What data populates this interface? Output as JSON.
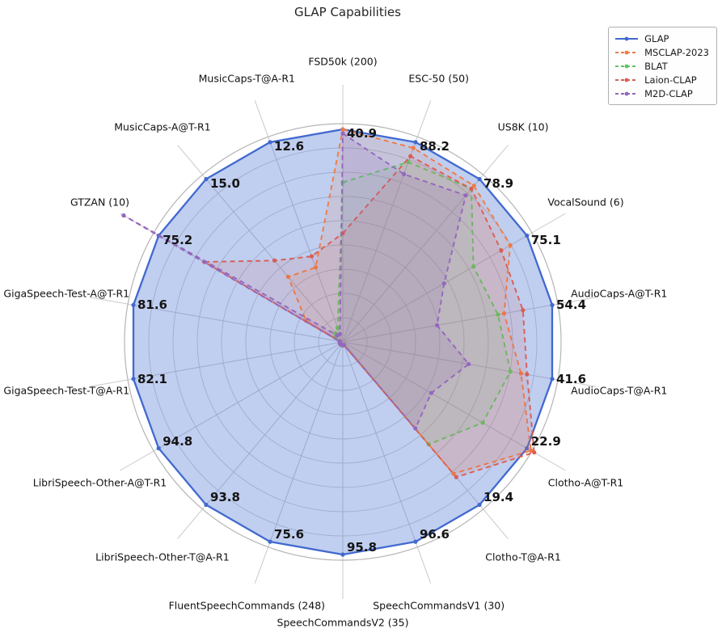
{
  "title": "GLAP Capabilities",
  "chart_data": {
    "type": "radar",
    "normalization": "per-axis: GLAP labeled value is drawn at the outer ring; other series scaled relative to GLAP on each axis",
    "grid": true,
    "rings": 9,
    "legend_position": "top-right",
    "axes": [
      {
        "label": "FSD50k (200)",
        "value_label": "40.9"
      },
      {
        "label": "ESC-50 (50)",
        "value_label": "88.2"
      },
      {
        "label": "US8K (10)",
        "value_label": "78.9"
      },
      {
        "label": "VocalSound (6)",
        "value_label": "75.1"
      },
      {
        "label": "AudioCaps-A@T-R1",
        "value_label": "54.4"
      },
      {
        "label": "AudioCaps-T@A-R1",
        "value_label": "41.6"
      },
      {
        "label": "Clotho-A@T-R1",
        "value_label": "22.9"
      },
      {
        "label": "Clotho-T@A-R1",
        "value_label": "19.4"
      },
      {
        "label": "SpeechCommandsV1 (30)",
        "value_label": "96.6"
      },
      {
        "label": "SpeechCommandsV2 (35)",
        "value_label": "95.8"
      },
      {
        "label": "FluentSpeechCommands (248)",
        "value_label": "75.6"
      },
      {
        "label": "LibriSpeech-Other-T@A-R1",
        "value_label": "93.8"
      },
      {
        "label": "LibriSpeech-Other-A@T-R1",
        "value_label": "94.8"
      },
      {
        "label": "GigaSpeech-Test-T@A-R1",
        "value_label": "82.1"
      },
      {
        "label": "GigaSpeech-Test-A@T-R1",
        "value_label": "81.6"
      },
      {
        "label": "GTZAN (10)",
        "value_label": "75.2"
      },
      {
        "label": "MusicCaps-A@T-R1",
        "value_label": "15.0"
      },
      {
        "label": "MusicCaps-T@A-R1",
        "value_label": "12.6"
      }
    ],
    "series": [
      {
        "name": "GLAP",
        "color": "#4169cf",
        "fill": "rgba(65,105,207,0.33)",
        "dashed": false,
        "labeled": true,
        "values": [
          40.9,
          88.2,
          78.9,
          75.1,
          54.4,
          41.6,
          22.9,
          19.4,
          96.6,
          95.8,
          75.6,
          93.8,
          94.8,
          82.1,
          81.6,
          75.2,
          15.0,
          12.6
        ]
      },
      {
        "name": "MSCLAP-2023",
        "color": "#ef7b45",
        "fill": "rgba(239,123,69,0.12)",
        "dashed": true,
        "labeled": false,
        "estimated_from_pixels": true,
        "values": [
          40.9,
          85.6,
          75.7,
          68.3,
          41.9,
          35.4,
          23.4,
          15.7,
          1.5,
          1.5,
          1.2,
          1.4,
          1.4,
          1.2,
          1.2,
          15.0,
          6.0,
          4.7
        ]
      },
      {
        "name": "BLAT",
        "color": "#5fc464",
        "fill": "rgba(95,196,100,0.10)",
        "dashed": true,
        "labeled": false,
        "estimated_from_pixels": true,
        "values": [
          30.7,
          79.4,
          74.2,
          53.3,
          40.3,
          33.3,
          17.4,
          12.2,
          1.5,
          1.5,
          1.2,
          1.4,
          1.4,
          1.2,
          1.2,
          3.0,
          0.8,
          0.9
        ]
      },
      {
        "name": "Laion-CLAP",
        "color": "#d95d55",
        "fill": "rgba(217,93,85,0.12)",
        "dashed": true,
        "labeled": false,
        "estimated_from_pixels": true,
        "values": [
          20.9,
          82.0,
          74.2,
          64.6,
          46.8,
          36.6,
          23.8,
          16.1,
          1.5,
          1.5,
          1.2,
          1.4,
          1.4,
          1.2,
          1.2,
          56.6,
          7.5,
          5.4
        ]
      },
      {
        "name": "M2D-CLAP",
        "color": "#9467bd",
        "fill": "rgba(148,103,189,0.15)",
        "dashed": true,
        "labeled": false,
        "estimated_from_pixels": true,
        "values": [
          40.1,
          74.1,
          71.0,
          41.3,
          24.5,
          25.0,
          11.0,
          10.3,
          1.5,
          1.5,
          1.2,
          1.4,
          1.4,
          1.2,
          1.2,
          89.5,
          0.6,
          0.5
        ]
      }
    ]
  }
}
